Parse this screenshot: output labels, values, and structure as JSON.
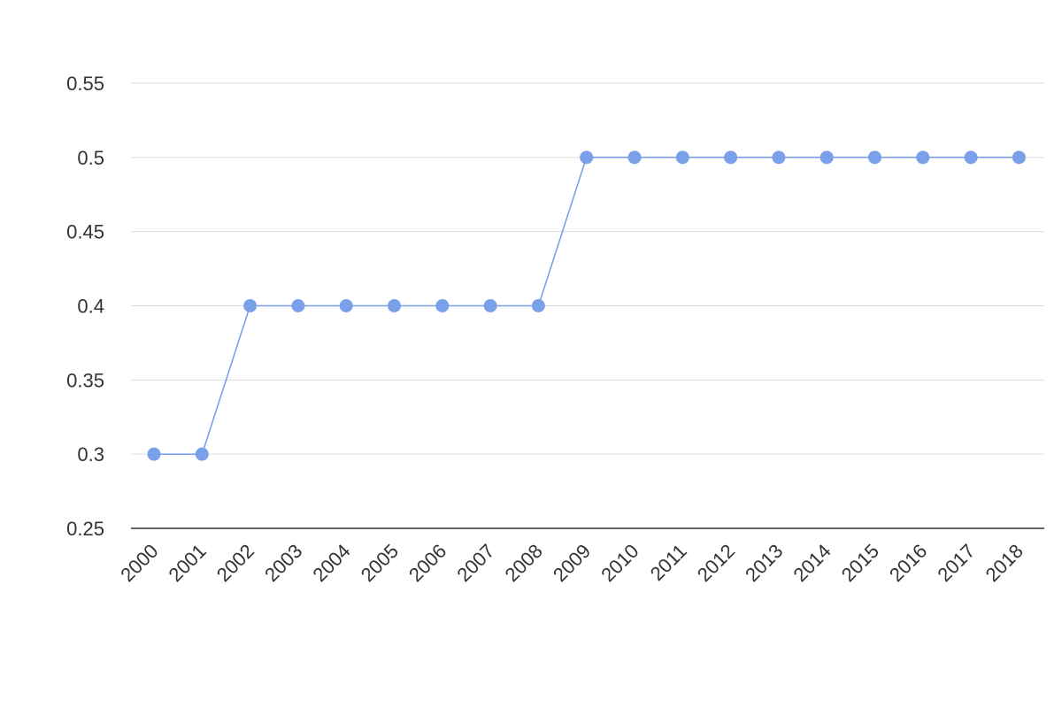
{
  "chart_data": {
    "type": "line",
    "title": "",
    "xlabel": "",
    "ylabel": "",
    "x": [
      "2000",
      "2001",
      "2002",
      "2003",
      "2004",
      "2005",
      "2006",
      "2007",
      "2008",
      "2009",
      "2010",
      "2011",
      "2012",
      "2013",
      "2014",
      "2015",
      "2016",
      "2017",
      "2018"
    ],
    "series": [
      {
        "values": [
          0.3,
          0.3,
          0.4,
          0.4,
          0.4,
          0.4,
          0.4,
          0.4,
          0.4,
          0.5,
          0.5,
          0.5,
          0.5,
          0.5,
          0.5,
          0.5,
          0.5,
          0.5,
          0.5
        ],
        "color": "#7ba0ea"
      }
    ],
    "ylim": [
      0.25,
      0.55
    ],
    "yticks": [
      {
        "value": 0.25,
        "label": "0.25"
      },
      {
        "value": 0.3,
        "label": "0.3"
      },
      {
        "value": 0.35,
        "label": "0.35"
      },
      {
        "value": 0.4,
        "label": "0.4"
      },
      {
        "value": 0.45,
        "label": "0.45"
      },
      {
        "value": 0.5,
        "label": "0.5"
      },
      {
        "value": 0.55,
        "label": "0.55"
      }
    ],
    "grid": true,
    "legend": "none",
    "marker": "circle"
  }
}
